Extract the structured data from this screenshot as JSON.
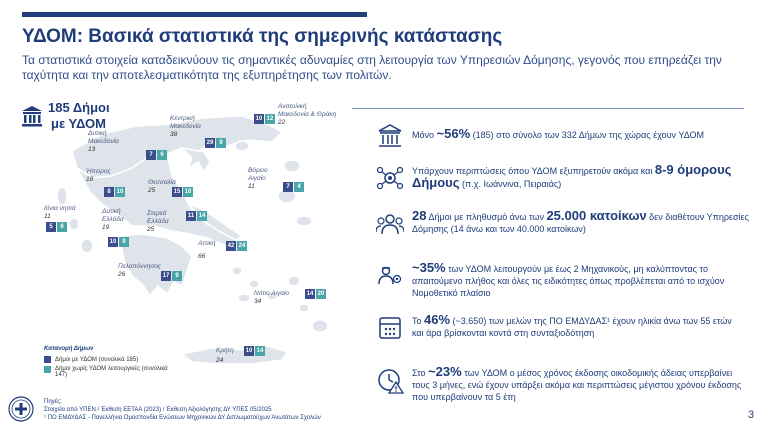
{
  "header": {
    "title": "ΥΔΟΜ: Βασικά στατιστικά της σημερινής κατάστασης",
    "subtitle": "Τα στατιστικά στοιχεία καταδεικνύουν τις σημαντικές αδυναμίες στη λειτουργία των Υπηρεσιών Δόμησης, γεγονός που επηρεάζει την ταχύτητα και την αποτελεσματικότητα της εξυπηρέτησης των πολιτών."
  },
  "map": {
    "headline_line1": "185 Δήμοι",
    "headline_line2": "με ΥΔΟΜ",
    "regions": [
      {
        "name": "Ανατολική Μακεδονία & Θράκη",
        "total": "22",
        "with": "10",
        "without": "12"
      },
      {
        "name": "Κεντρική Μακεδονία",
        "total": "38",
        "with": "29",
        "without": "9"
      },
      {
        "name": "Δυτική Μακεδονία",
        "total": "13",
        "with": "7",
        "without": "6"
      },
      {
        "name": "Ήπειρος",
        "total": "18",
        "with": "8",
        "without": "10"
      },
      {
        "name": "Θεσσαλία",
        "total": "25",
        "with": "15",
        "without": "10"
      },
      {
        "name": "Βόρειο Αιγαίο",
        "total": "11",
        "with": "7",
        "without": "4"
      },
      {
        "name": "Ιόνια νησιά",
        "total": "11",
        "with": "5",
        "without": "6"
      },
      {
        "name": "Δυτική Ελλάδα",
        "total": "19",
        "with": "10",
        "without": "9"
      },
      {
        "name": "Στερεά Ελλάδα",
        "total": "25",
        "with": "11",
        "without": "14"
      },
      {
        "name": "Αττική",
        "total": "66",
        "with": "42",
        "without": "24"
      },
      {
        "name": "Πελοπόννησος",
        "total": "26",
        "with": "17",
        "without": "9"
      },
      {
        "name": "Νότιο Αιγαίο",
        "total": "34",
        "with": "14",
        "without": "20"
      },
      {
        "name": "Κρήτη",
        "total": "24",
        "with": "10",
        "without": "14"
      }
    ],
    "legend": {
      "title": "Κατανομή Δήμων",
      "with": "Δήμοι με ΥΔΟΜ (συνολικά 185)",
      "without_line1": "Δήμοι χωρίς ΥΔΟΜ λειτουργικές (συνολικά",
      "without_line2": "147)"
    }
  },
  "stats": [
    {
      "pre": "Μόνο ",
      "big": "~56%",
      "post": " (185) στο σύνολο των 332 Δήμων της χώρας έχουν ΥΔΟΜ"
    },
    {
      "pre": "Υπάρχουν περιπτώσεις όπου ΥΔΟΜ εξυπηρετούν ακόμα και ",
      "big": "8-9 όμορους Δήμους",
      "post": " (π.χ. Ιωάννινα, Πειραιάς)"
    },
    {
      "big1": "28",
      "pre": " Δήμοι με πληθυσμό άνω των ",
      "big2": "25.000 κατοίκων",
      "post": " δεν διαθέτουν Υπηρεσίες Δόμησης (14 άνω και των 40.000 κατοίκων)"
    },
    {
      "big": "~35%",
      "post": " των ΥΔΟΜ λειτουργούν με έως 2 Μηχανικούς, μη καλύπτοντας το απαιτούμενο πλήθος και όλες τις ειδικότητες όπως προβλέπεται από το ισχύον Νομοθετικό πλαίσιο"
    },
    {
      "pre": "Το ",
      "big": "46%",
      "post": " (~3.650) των μελών της ΠΟ ΕΜΔΥΔΑΣ¹ έχουν ηλικία άνω των 55 ετών και άρα βρίσκονται κοντά στη συνταξιοδότηση"
    },
    {
      "pre": "Στο ",
      "big": "~23%",
      "post": " των ΥΔΟΜ ο μέσος χρόνος έκδοσης οικοδομικής άδειας υπερβαίνει τους 3 μήνες, ενώ έχουν υπάρξει ακόμα και περιπτώσεις μέγιστου χρόνου έκδοσης που υπερβαίνουν τα 5 έτη"
    }
  ],
  "footer": {
    "line1": "Πηγές:",
    "line2": "Στοιχεία από ΥΠΕΝ / Έκθεση ΕΕΤΑΑ (2023) / Έκθεση Αξιολόγησης ΔΥ ΥΠΕΣ 05/2025",
    "line3": "¹ ΠΟ ΕΜΔΥΔΑΣ - Πανελλήνια Ομοσπονδία Ενώσεων Μηχανικών ΔΥ Διπλωματούχων Ανωτάτων Σχολών"
  },
  "page_number": "3",
  "colors": {
    "navy": "#1f3d7a",
    "dark_box": "#3b4d8c",
    "teal_box": "#4aa5a8",
    "map_fill": "#dfe3ea"
  }
}
